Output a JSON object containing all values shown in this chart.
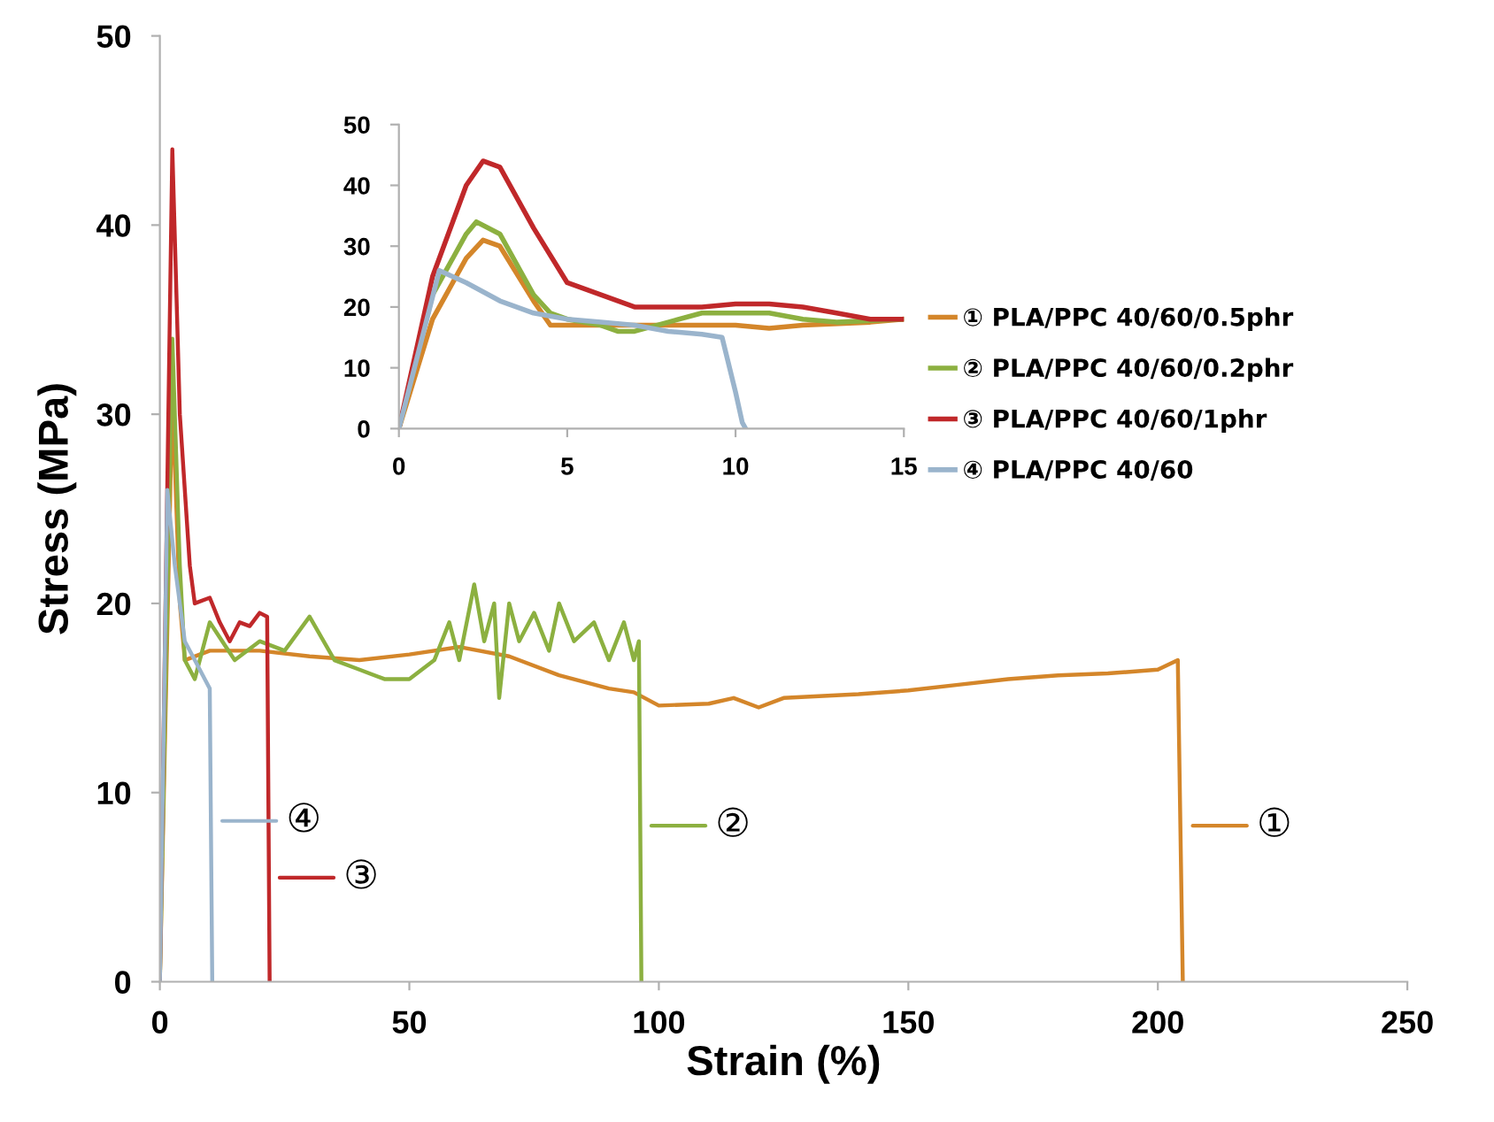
{
  "chart_data": [
    {
      "type": "line",
      "xlabel": "Strain (%)",
      "ylabel": "Stress (MPa)",
      "xlim": [
        0,
        250
      ],
      "ylim": [
        0,
        50
      ],
      "xticks": [
        0,
        50,
        100,
        150,
        200,
        250
      ],
      "yticks": [
        0,
        10,
        20,
        30,
        40,
        50
      ],
      "grid": false,
      "legend": "right",
      "marker": "none",
      "line_style": "solid",
      "series": [
        {
          "name": "① PLA/PPC 40/60/0.5phr",
          "color": "#d4862a",
          "x": [
            0,
            2.5,
            4,
            5,
            10,
            20,
            30,
            40,
            50,
            60,
            70,
            80,
            90,
            95,
            100,
            110,
            115,
            120,
            125,
            140,
            150,
            160,
            170,
            180,
            190,
            200,
            204,
            205
          ],
          "values": [
            0,
            31,
            20,
            17,
            17.5,
            17.5,
            17.2,
            17,
            17.3,
            17.7,
            17.2,
            16.2,
            15.5,
            15.3,
            14.6,
            14.7,
            15,
            14.5,
            15,
            15.2,
            15.4,
            15.7,
            16,
            16.2,
            16.3,
            16.5,
            17,
            0
          ]
        },
        {
          "name": "② PLA/PPC 40/60/0.2phr",
          "color": "#8cb040",
          "x": [
            0,
            2.5,
            4,
            5,
            7,
            10,
            15,
            20,
            25,
            30,
            35,
            40,
            45,
            50,
            55,
            58,
            60,
            63,
            65,
            67,
            68,
            70,
            72,
            75,
            78,
            80,
            83,
            87,
            90,
            93,
            95,
            96,
            96.5
          ],
          "values": [
            0,
            34,
            22,
            17,
            16,
            19,
            17,
            18,
            17.5,
            19.3,
            17,
            16.5,
            16,
            16,
            17,
            19,
            17,
            21,
            18,
            20,
            15,
            20,
            18,
            19.5,
            17.5,
            20,
            18,
            19,
            17,
            19,
            17,
            18,
            0
          ]
        },
        {
          "name": "③ PLA/PPC 40/60/1phr",
          "color": "#c0282a",
          "x": [
            0,
            2.5,
            4,
            6,
            7,
            10,
            12,
            14,
            16,
            18,
            20,
            21.5,
            22
          ],
          "values": [
            0,
            44,
            30,
            22,
            20,
            20.3,
            19,
            18,
            19,
            18.8,
            19.5,
            19.3,
            0
          ]
        },
        {
          "name": "④ PLA/PPC 40/60",
          "color": "#9ab4cc",
          "x": [
            0,
            1.5,
            3,
            5,
            7,
            9,
            10,
            10.5
          ],
          "values": [
            0,
            26,
            22,
            18,
            17,
            16,
            15.5,
            0
          ]
        }
      ],
      "annotations": [
        "①",
        "②",
        "③",
        "④"
      ]
    },
    {
      "type": "line",
      "xlim": [
        0,
        15
      ],
      "ylim": [
        0,
        50
      ],
      "xticks": [
        0,
        5,
        10,
        15
      ],
      "yticks": [
        0,
        10,
        20,
        30,
        40,
        50
      ],
      "grid": false,
      "marker": "none",
      "line_style": "solid",
      "series": [
        {
          "color": "#d4862a",
          "x": [
            0,
            1,
            2,
            2.5,
            3,
            4,
            4.5,
            5,
            6,
            8,
            10,
            11,
            12,
            14,
            15
          ],
          "values": [
            0,
            18,
            28,
            31,
            30,
            21,
            17,
            17,
            17,
            17,
            17,
            16.5,
            17,
            17.5,
            18
          ]
        },
        {
          "color": "#8cb040",
          "x": [
            0,
            1,
            2,
            2.3,
            3,
            4,
            4.5,
            5,
            6,
            6.5,
            7,
            8,
            9,
            10,
            11,
            12,
            13,
            15
          ],
          "values": [
            0,
            22,
            32,
            34,
            32,
            22,
            19,
            18,
            17,
            16,
            16,
            17.5,
            19,
            19,
            19,
            18,
            17.5,
            18
          ]
        },
        {
          "color": "#c0282a",
          "x": [
            0,
            1,
            2,
            2.5,
            3,
            4,
            5,
            6,
            7,
            8,
            9,
            10,
            11,
            12,
            13,
            14,
            15
          ],
          "values": [
            0,
            25,
            40,
            44,
            43,
            33,
            24,
            22,
            20,
            20,
            20,
            20.5,
            20.5,
            20,
            19,
            18,
            18
          ]
        },
        {
          "color": "#9ab4cc",
          "x": [
            0,
            1.2,
            2,
            3,
            4,
            5,
            6,
            7,
            8,
            9,
            9.6,
            10,
            10.2,
            10.3
          ],
          "values": [
            0,
            26,
            24,
            21,
            19,
            18,
            17.5,
            17,
            16,
            15.5,
            15,
            6,
            1,
            0
          ]
        }
      ]
    }
  ]
}
